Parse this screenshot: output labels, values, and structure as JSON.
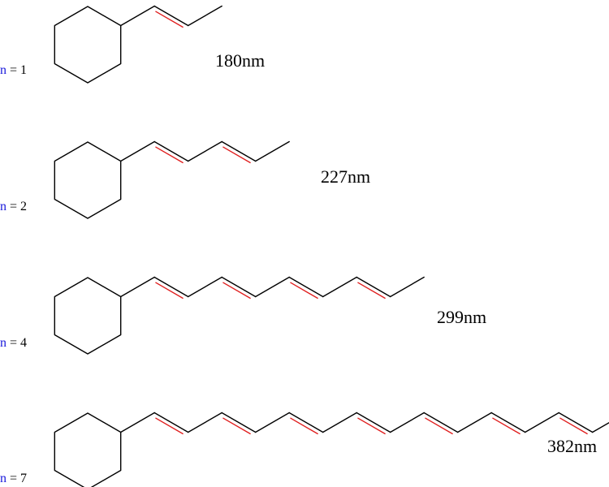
{
  "colors": {
    "n_label": "#1a1adb",
    "double_bond": "#e02020",
    "bond": "#000000",
    "background": "#ffffff"
  },
  "molecules": [
    {
      "n_symbol": "n",
      "n_rest": " = 1",
      "n_value": 1,
      "wavelength": "180nm"
    },
    {
      "n_symbol": "n",
      "n_rest": " = 2",
      "n_value": 2,
      "wavelength": "227nm"
    },
    {
      "n_symbol": "n",
      "n_rest": " = 4",
      "n_value": 4,
      "wavelength": "299nm"
    },
    {
      "n_symbol": "n",
      "n_rest": " = 7",
      "n_value": 7,
      "wavelength": "382nm"
    }
  ]
}
